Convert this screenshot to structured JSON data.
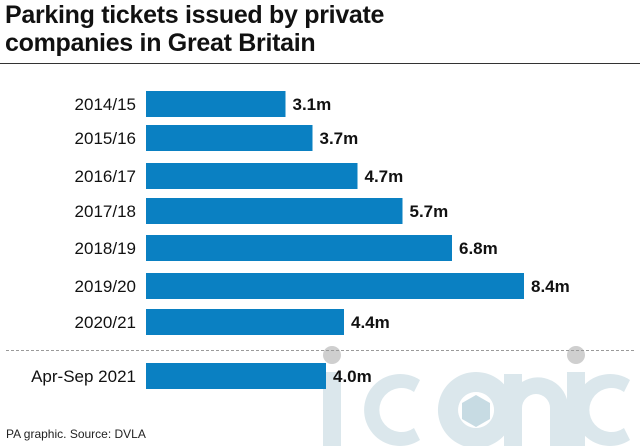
{
  "title_lines": [
    "Parking tickets issued by private",
    "companies in Great Britain"
  ],
  "source": "PA graphic. Source: DVLA",
  "watermark_text": "iconic",
  "colors": {
    "bar": "#0a80c2",
    "text": "#111111",
    "watermark": "#dbe7ec"
  },
  "chart_data": {
    "type": "bar",
    "orientation": "horizontal",
    "title": "Parking tickets issued by private companies in Great Britain",
    "xlabel": "",
    "ylabel": "",
    "unit": "m",
    "categories": [
      "2014/15",
      "2015/16",
      "2016/17",
      "2017/18",
      "2018/19",
      "2019/20",
      "2020/21",
      "Apr-Sep 2021"
    ],
    "values": [
      3.1,
      3.7,
      4.7,
      5.7,
      6.8,
      8.4,
      4.4,
      4.0
    ],
    "value_labels": [
      "3.1m",
      "3.7m",
      "4.7m",
      "5.7m",
      "6.8m",
      "8.4m",
      "4.4m",
      "4.0m"
    ],
    "grid": false,
    "legend": "none"
  }
}
